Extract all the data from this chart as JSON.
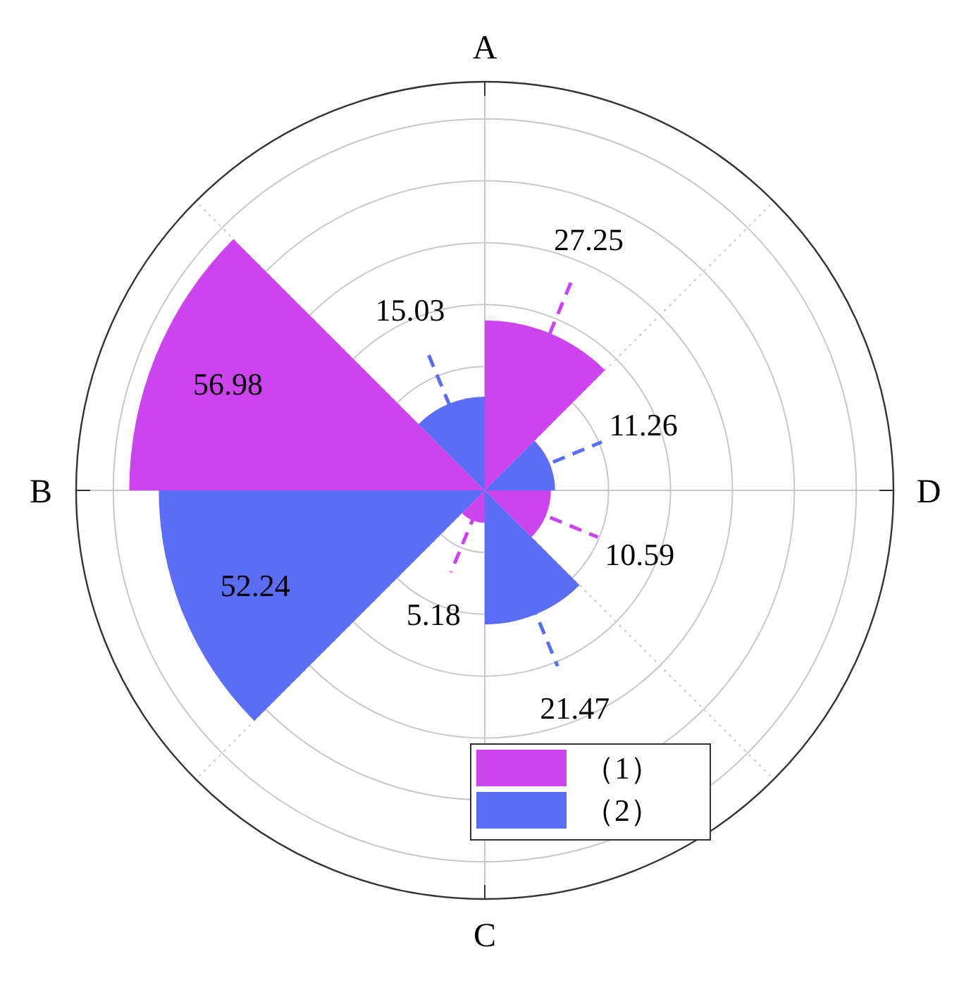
{
  "chart_data": {
    "type": "other",
    "categories": [
      "A",
      "D",
      "C",
      "B"
    ],
    "series": [
      {
        "name": "（1）",
        "color": "#cc44ee",
        "values": [
          27.25,
          10.59,
          5.18,
          56.98
        ]
      },
      {
        "name": "（2）",
        "color": "#5b6cf5",
        "values": [
          15.03,
          11.26,
          21.47,
          52.24
        ]
      }
    ],
    "data_labels": true,
    "legend": "bottom right"
  }
}
